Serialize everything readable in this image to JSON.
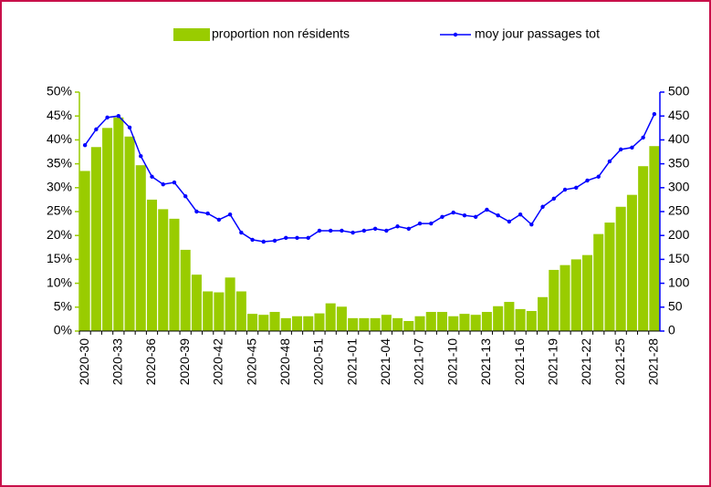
{
  "chart_data": {
    "type": "bar_line",
    "categories": [
      "2020-30",
      null,
      null,
      "2020-33",
      null,
      null,
      "2020-36",
      null,
      null,
      "2020-39",
      null,
      null,
      "2020-42",
      null,
      null,
      "2020-45",
      null,
      null,
      "2020-48",
      null,
      null,
      "2020-51",
      null,
      null,
      "2021-01",
      null,
      null,
      "2021-04",
      null,
      null,
      "2021-07",
      null,
      null,
      "2021-10",
      null,
      null,
      "2021-13",
      null,
      null,
      "2021-16",
      null,
      null,
      "2021-19",
      null,
      null,
      "2021-22",
      null,
      null,
      "2021-25",
      null,
      null,
      "2021-28"
    ],
    "series": [
      {
        "name": "proportion non résidents",
        "type": "bar",
        "color": "#99cc00",
        "values": [
          33.5,
          38.5,
          42.5,
          44.7,
          40.7,
          34.7,
          27.5,
          25.5,
          23.5,
          17,
          11.8,
          8.3,
          8.1,
          11.2,
          8.3,
          3.6,
          3.4,
          4,
          2.7,
          3.1,
          3.1,
          3.7,
          5.8,
          5.1,
          2.7,
          2.7,
          2.7,
          3.4,
          2.7,
          2.1,
          3.1,
          4,
          4,
          3.1,
          3.6,
          3.4,
          4,
          5.2,
          6.1,
          4.6,
          4.2,
          7.1,
          12.8,
          13.8,
          15,
          15.9,
          20.3,
          22.7,
          26,
          28.5,
          34.5,
          38.7
        ]
      },
      {
        "name": "moy jour passages tot",
        "type": "line",
        "axis": "y2",
        "color": "#0000ff",
        "values": [
          389,
          422,
          447,
          450,
          426,
          366,
          323,
          307,
          311,
          282,
          250,
          246,
          233,
          244,
          206,
          191,
          187,
          189,
          195,
          195,
          195,
          210,
          210,
          210,
          206,
          210,
          214,
          210,
          219,
          214,
          225,
          225,
          239,
          248,
          242,
          239,
          254,
          242,
          229,
          244,
          223,
          260,
          277,
          296,
          300,
          315,
          323,
          355,
          380,
          384,
          405,
          454
        ]
      }
    ],
    "ylim": [
      0,
      50
    ],
    "yticks": [
      {
        "value": 0,
        "label": "0%"
      },
      {
        "value": 5,
        "label": "5%"
      },
      {
        "value": 10,
        "label": "10%"
      },
      {
        "value": 15,
        "label": "15%"
      },
      {
        "value": 20,
        "label": "20%"
      },
      {
        "value": 25,
        "label": "25%"
      },
      {
        "value": 30,
        "label": "30%"
      },
      {
        "value": 35,
        "label": "35%"
      },
      {
        "value": 40,
        "label": "40%"
      },
      {
        "value": 45,
        "label": "45%"
      },
      {
        "value": 50,
        "label": "50%"
      }
    ],
    "y2lim": [
      0,
      500
    ],
    "y2ticks": [
      0,
      50,
      100,
      150,
      200,
      250,
      300,
      350,
      400,
      450,
      500
    ],
    "legend": "top"
  }
}
